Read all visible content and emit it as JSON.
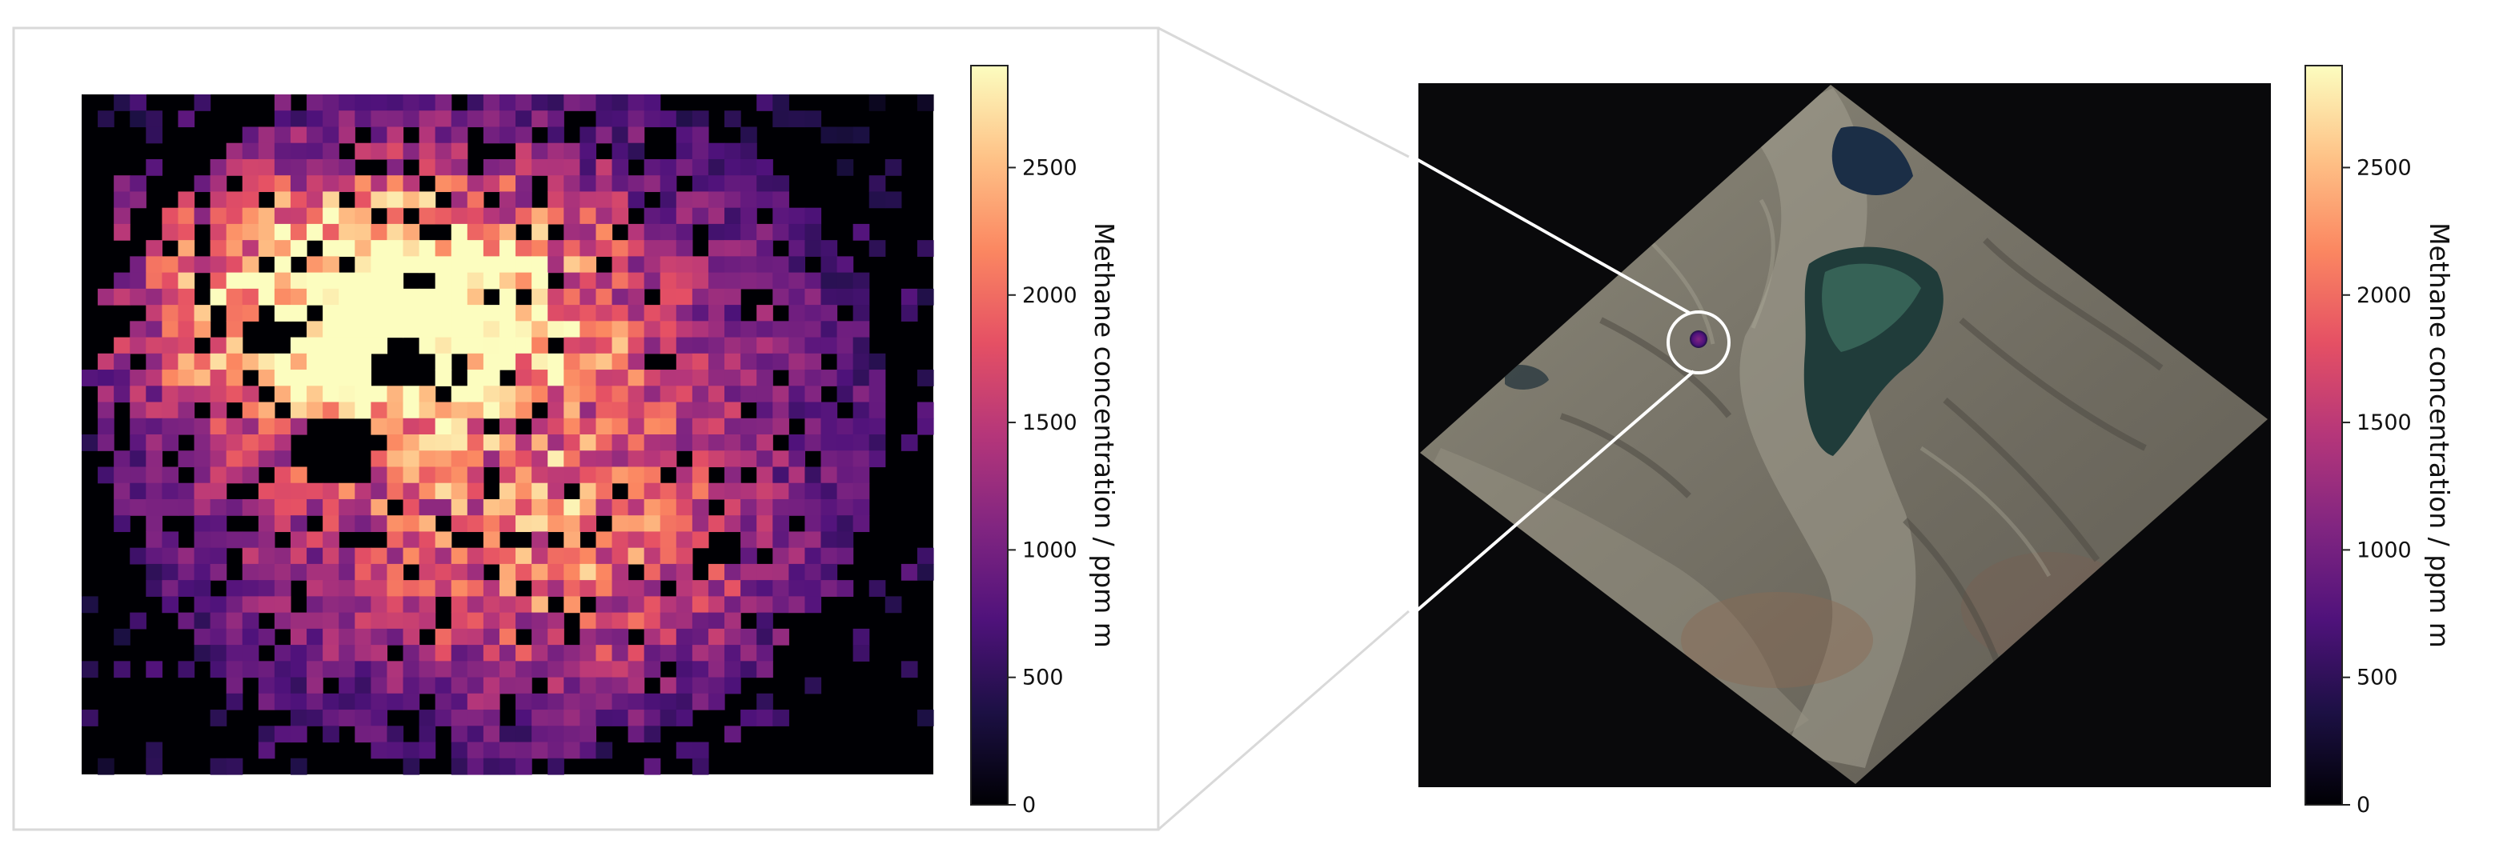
{
  "colorbar": {
    "label": "Methane concentration / ppm m",
    "ticks": [
      0,
      500,
      1000,
      1500,
      2000,
      2500
    ],
    "tick_labels": [
      "0",
      "500",
      "1000",
      "1500",
      "2000",
      "2500"
    ],
    "vmin": 0,
    "vmax": 2900,
    "colormap": "magma",
    "stops": [
      "#000004",
      "#1c1044",
      "#4f127b",
      "#812581",
      "#b5367a",
      "#e55064",
      "#fb8761",
      "#fec287",
      "#fcfdbf"
    ]
  },
  "panels": {
    "left": {
      "content": "methane-plume-heatmap"
    },
    "right": {
      "content": "satellite-scene",
      "marker": "plume-location-circle"
    }
  },
  "colors": {
    "background": "#ffffff",
    "plot_background": "#000004",
    "frame": "#d9d9d9",
    "connector_line": "#ffffff"
  }
}
